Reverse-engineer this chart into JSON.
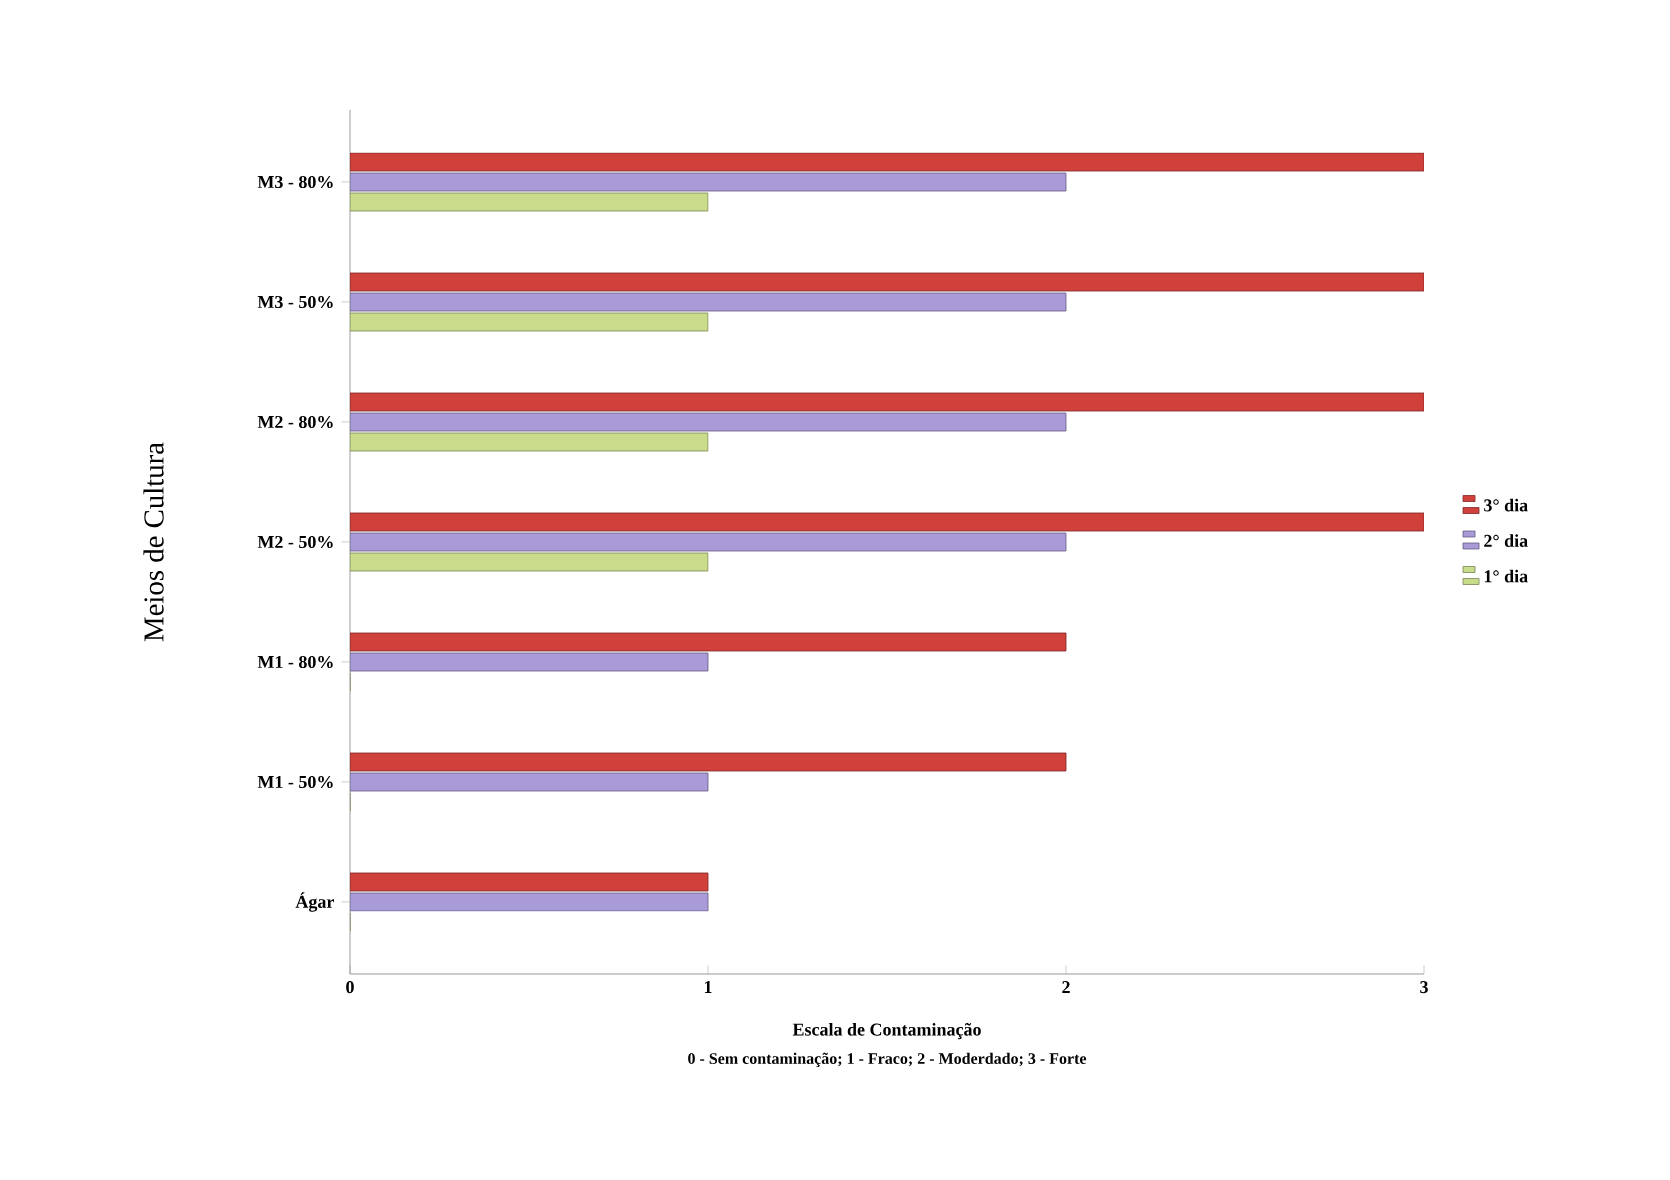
{
  "chart_data": {
    "type": "bar",
    "orientation": "horizontal",
    "categories": [
      "M3 - 80%",
      "M3 - 50%",
      "M2 - 80%",
      "M2 - 50%",
      "M1 - 80%",
      "M1 - 50%",
      "Ágar"
    ],
    "series": [
      {
        "name": "3° dia",
        "color": "#d0413c",
        "values": [
          3,
          3,
          3,
          3,
          2,
          2,
          1
        ]
      },
      {
        "name": "2° dia",
        "color": "#a99ad8",
        "values": [
          2,
          2,
          2,
          2,
          1,
          1,
          1
        ]
      },
      {
        "name": "1° dia",
        "color": "#c8dc8c",
        "values": [
          1,
          1,
          1,
          1,
          0,
          0,
          0
        ]
      }
    ],
    "xlim": [
      0,
      3
    ],
    "xticks": [
      0,
      1,
      2,
      3
    ],
    "xlabel": "Escala de Contaminação",
    "ylabel": "Meios de Cultura",
    "annotations": [
      "0 - Sem contaminação; 1 - Fraco; 2 - Moderdado; 3 - Forte"
    ],
    "legend": "right",
    "grid": false
  }
}
